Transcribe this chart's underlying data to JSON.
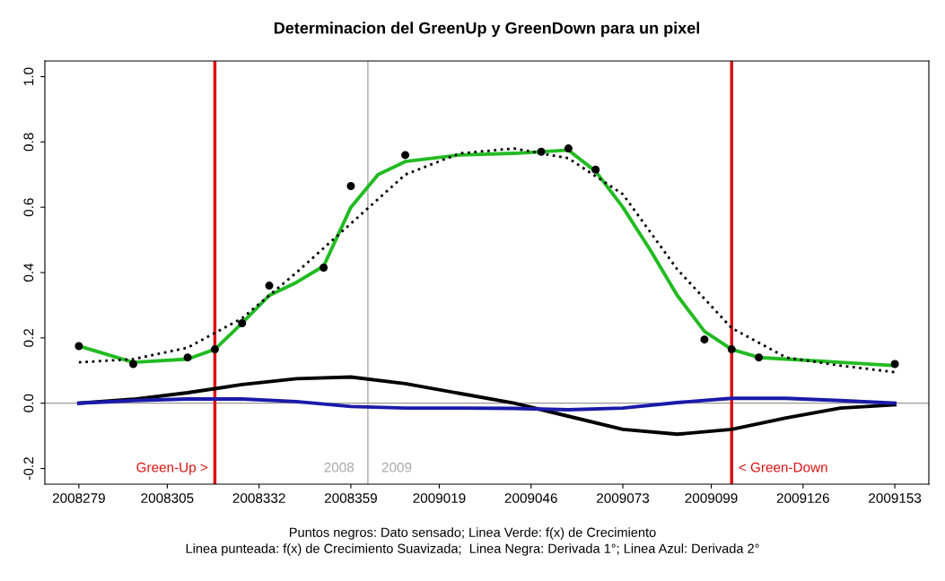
{
  "chart_data": {
    "type": "line",
    "title": "Determinacion del GreenUp y GreenDown para un pixel",
    "xlim": [
      "2008-09-25",
      "2009-06-12"
    ],
    "ylim": [
      -0.248,
      1.048
    ],
    "xticks": [
      {
        "value": "2008-10-05",
        "label": "2008279"
      },
      {
        "value": "2008-10-31",
        "label": "2008305"
      },
      {
        "value": "2008-11-27",
        "label": "2008332"
      },
      {
        "value": "2008-12-24",
        "label": "2008359"
      },
      {
        "value": "2009-01-19",
        "label": "2009019"
      },
      {
        "value": "2009-02-15",
        "label": "2009046"
      },
      {
        "value": "2009-03-14",
        "label": "2009073"
      },
      {
        "value": "2009-04-09",
        "label": "2009099"
      },
      {
        "value": "2009-05-06",
        "label": "2009126"
      },
      {
        "value": "2009-06-02",
        "label": "2009153"
      }
    ],
    "yticks": [
      {
        "value": -0.2,
        "label": "-0.2"
      },
      {
        "value": 0,
        "label": "0.0"
      },
      {
        "value": 0.2,
        "label": "0.2"
      },
      {
        "value": 0.4,
        "label": "0.4"
      },
      {
        "value": 0.6,
        "label": "0.6"
      },
      {
        "value": 0.8,
        "label": "0.8"
      },
      {
        "value": 1.0,
        "label": "1.0"
      }
    ],
    "grid": false,
    "series": [
      {
        "color": "#22bb22",
        "line_style": "solid",
        "x": [
          "2008-10-05",
          "2008-10-21",
          "2008-11-06",
          "2008-11-14",
          "2008-11-22",
          "2008-11-30",
          "2008-12-08",
          "2008-12-16",
          "2008-12-24",
          "2009-01-01",
          "2009-01-09",
          "2009-01-25",
          "2009-02-10",
          "2009-02-26",
          "2009-03-06",
          "2009-03-14",
          "2009-03-22",
          "2009-03-30",
          "2009-04-07",
          "2009-04-15",
          "2009-04-23",
          "2009-05-01",
          "2009-05-17",
          "2009-06-02"
        ],
        "values": [
          0.175,
          0.125,
          0.135,
          0.165,
          0.245,
          0.33,
          0.37,
          0.42,
          0.6,
          0.7,
          0.74,
          0.76,
          0.765,
          0.775,
          0.71,
          0.6,
          0.47,
          0.33,
          0.22,
          0.165,
          0.14,
          0.135,
          0.125,
          0.115
        ]
      },
      {
        "color": "#000000",
        "line_style": "dotted",
        "x": [
          "2008-10-05",
          "2008-10-21",
          "2008-11-06",
          "2008-11-22",
          "2008-12-08",
          "2008-12-24",
          "2009-01-09",
          "2009-01-25",
          "2009-02-10",
          "2009-02-26",
          "2009-03-14",
          "2009-03-30",
          "2009-04-15",
          "2009-05-01",
          "2009-05-17",
          "2009-06-02"
        ],
        "values": [
          0.125,
          0.135,
          0.17,
          0.26,
          0.4,
          0.55,
          0.7,
          0.765,
          0.78,
          0.75,
          0.64,
          0.41,
          0.23,
          0.14,
          0.115,
          0.095
        ]
      },
      {
        "color": "#000000",
        "line_style": "solid",
        "x": [
          "2008-10-05",
          "2008-10-21",
          "2008-11-06",
          "2008-11-22",
          "2008-12-08",
          "2008-12-24",
          "2009-01-09",
          "2009-01-25",
          "2009-02-10",
          "2009-02-26",
          "2009-03-14",
          "2009-03-30",
          "2009-04-15",
          "2009-05-01",
          "2009-05-17",
          "2009-06-02"
        ],
        "values": [
          0,
          0.012,
          0.032,
          0.057,
          0.075,
          0.08,
          0.06,
          0.03,
          0.0,
          -0.04,
          -0.08,
          -0.095,
          -0.08,
          -0.045,
          -0.015,
          -0.005
        ]
      },
      {
        "color": "#1a1aaa",
        "line_style": "solid",
        "x": [
          "2008-10-05",
          "2008-10-21",
          "2008-11-06",
          "2008-11-22",
          "2008-12-08",
          "2008-12-24",
          "2009-01-09",
          "2009-01-25",
          "2009-02-10",
          "2009-02-26",
          "2009-03-14",
          "2009-03-30",
          "2009-04-15",
          "2009-05-01",
          "2009-05-17",
          "2009-06-02"
        ],
        "values": [
          0,
          0.008,
          0.013,
          0.013,
          0.005,
          -0.01,
          -0.015,
          -0.015,
          -0.016,
          -0.02,
          -0.015,
          0.002,
          0.015,
          0.015,
          0.008,
          0
        ]
      },
      {
        "type": "scatter",
        "color": "#000000",
        "marker": "circle",
        "x": [
          "2008-10-05",
          "2008-10-21",
          "2008-11-06",
          "2008-11-14",
          "2008-11-22",
          "2008-11-30",
          "2008-12-16",
          "2008-12-24",
          "2009-01-09",
          "2009-02-18",
          "2009-02-26",
          "2009-03-06",
          "2009-04-07",
          "2009-04-15",
          "2009-04-23",
          "2009-06-02"
        ],
        "values": [
          0.175,
          0.12,
          0.14,
          0.165,
          0.245,
          0.36,
          0.415,
          0.665,
          0.76,
          0.77,
          0.78,
          0.715,
          0.195,
          0.165,
          0.14,
          0.12
        ]
      }
    ],
    "ref_lines": [
      {
        "axis": "y",
        "value": 0,
        "color": "#999999"
      },
      {
        "axis": "x",
        "value": "2008-12-29",
        "color": "#aaaaaa"
      },
      {
        "axis": "x",
        "value": "2008-11-14",
        "color": "#dd1111",
        "label": "Green-Up >"
      },
      {
        "axis": "x",
        "value": "2009-04-15",
        "color": "#dd1111",
        "label": "< Green-Down"
      }
    ],
    "annotations": [
      "2008",
      "2009",
      "Puntos negros: Dato sensado; Linea Verde: f(x) de Crecimiento",
      "Linea punteada: f(x) de Crecimiento Suavizada;  Linea Negra: Derivada 1°; Linea Azul: Derivada 2°"
    ]
  }
}
